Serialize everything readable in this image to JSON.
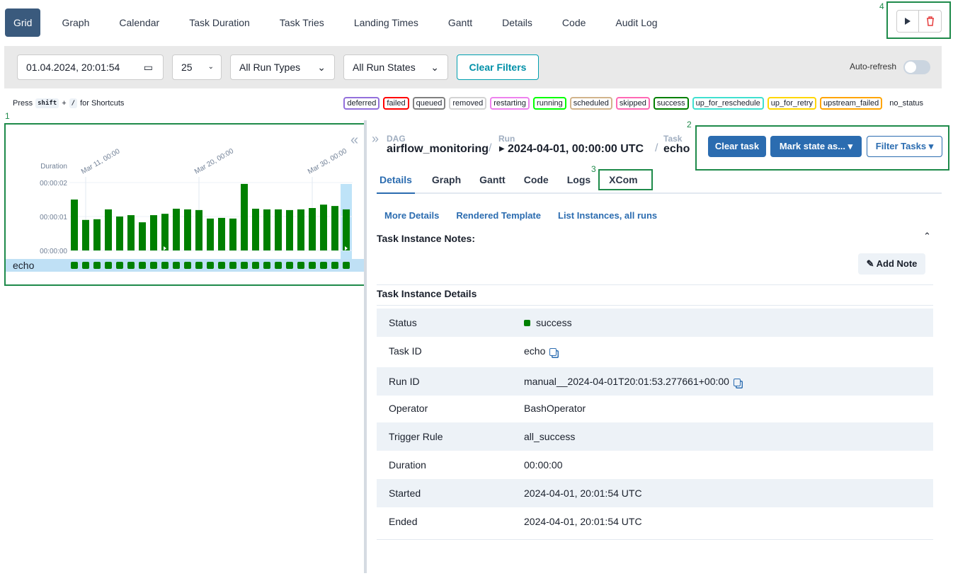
{
  "nav": {
    "tabs": [
      "Grid",
      "Graph",
      "Calendar",
      "Task Duration",
      "Task Tries",
      "Landing Times",
      "Gantt",
      "Details",
      "Code",
      "Audit Log"
    ]
  },
  "annotations": [
    "1",
    "2",
    "3",
    "4"
  ],
  "filters": {
    "date": "01.04.2024, 20:01:54",
    "limit": "25",
    "run_types": "All Run Types",
    "run_states": "All Run States",
    "clear": "Clear Filters",
    "auto_refresh": "Auto-refresh"
  },
  "shortcuts": {
    "press": "Press",
    "key1": "shift",
    "plus": "+",
    "key2": "/",
    "suffix": "for Shortcuts"
  },
  "states": [
    {
      "name": "deferred",
      "color": "#9370db"
    },
    {
      "name": "failed",
      "color": "#ff0000"
    },
    {
      "name": "queued",
      "color": "#808080"
    },
    {
      "name": "removed",
      "color": "#d3d3d3"
    },
    {
      "name": "restarting",
      "color": "#ee82ee"
    },
    {
      "name": "running",
      "color": "#00ff00"
    },
    {
      "name": "scheduled",
      "color": "#d2b48c"
    },
    {
      "name": "skipped",
      "color": "#ff69b4"
    },
    {
      "name": "success",
      "color": "#008000"
    },
    {
      "name": "up_for_reschedule",
      "color": "#40e0d0"
    },
    {
      "name": "up_for_retry",
      "color": "#ffd700"
    },
    {
      "name": "upstream_failed",
      "color": "#ffa500"
    },
    {
      "name": "no_status",
      "color": null
    }
  ],
  "duration_chart": {
    "type": "bar",
    "y_label": "Duration",
    "color": "#008000",
    "ylim": [
      0,
      2
    ],
    "yticks": [
      {
        "value": 0,
        "label": "00:00:00"
      },
      {
        "value": 1,
        "label": "00:00:01"
      },
      {
        "value": 2,
        "label": "00:00:02"
      }
    ],
    "x_labels": [
      "Mar 11, 00:00",
      "Mar 20, 00:00",
      "Mar 30, 00:00"
    ],
    "values": [
      1.5,
      0.9,
      0.92,
      1.21,
      1.0,
      1.04,
      0.83,
      1.04,
      1.08,
      1.23,
      1.21,
      1.19,
      0.94,
      0.96,
      0.94,
      1.96,
      1.23,
      1.21,
      1.21,
      1.19,
      1.21,
      1.25,
      1.35,
      1.31,
      1.21
    ]
  },
  "task_row": {
    "name": "echo"
  },
  "breadcrumb": {
    "dag_label": "DAG",
    "dag": "airflow_monitoring",
    "run_label": "Run",
    "run": "2024-04-01, 00:00:00 UTC",
    "task_label": "Task",
    "task": "echo"
  },
  "actions": [
    "Clear task",
    "Mark state as...",
    "Filter Tasks"
  ],
  "detail_tabs": [
    "Details",
    "Graph",
    "Gantt",
    "Code",
    "Logs",
    "XCom"
  ],
  "links": [
    "More Details",
    "Rendered Template",
    "List Instances, all runs"
  ],
  "notes": {
    "title": "Task Instance Notes:",
    "add": "Add Note"
  },
  "details": {
    "title": "Task Instance Details",
    "rows": [
      [
        "Status",
        "success"
      ],
      [
        "Task ID",
        "echo"
      ],
      [
        "Run ID",
        "manual__2024-04-01T20:01:53.277661+00:00"
      ],
      [
        "Operator",
        "BashOperator"
      ],
      [
        "Trigger Rule",
        "all_success"
      ],
      [
        "Duration",
        "00:00:00"
      ],
      [
        "Started",
        "2024-04-01, 20:01:54 UTC"
      ],
      [
        "Ended",
        "2024-04-01, 20:01:54 UTC"
      ]
    ]
  }
}
